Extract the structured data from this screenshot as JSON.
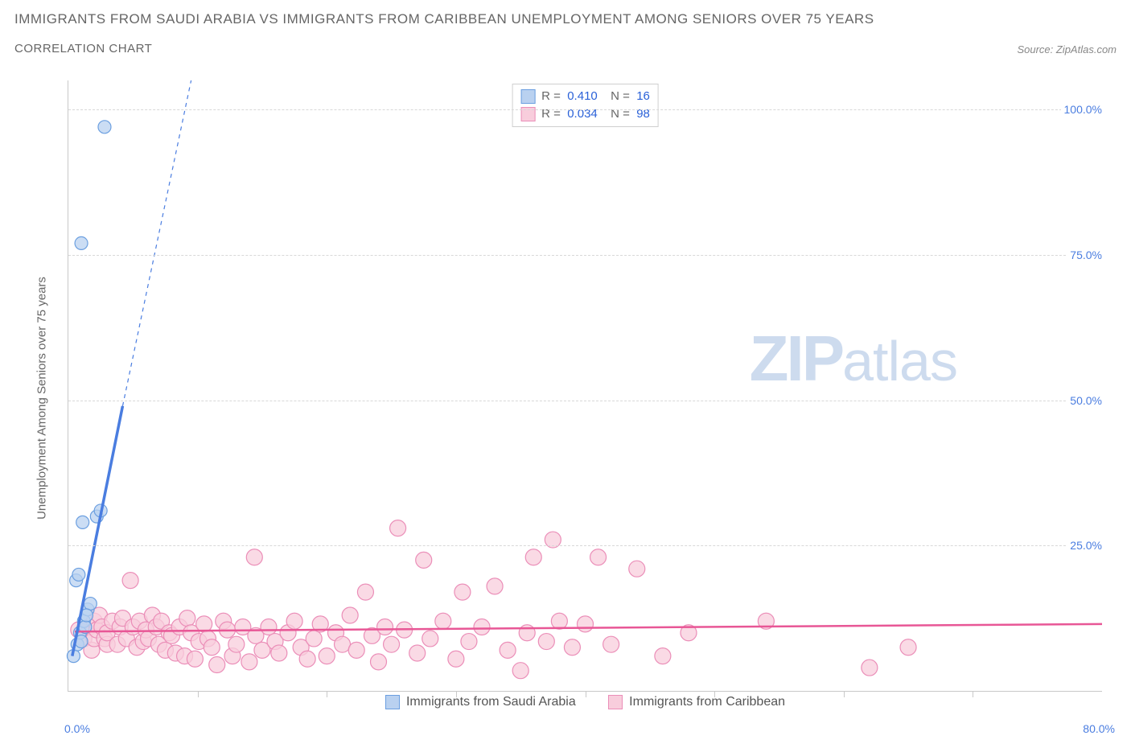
{
  "title": "IMMIGRANTS FROM SAUDI ARABIA VS IMMIGRANTS FROM CARIBBEAN UNEMPLOYMENT AMONG SENIORS OVER 75 YEARS",
  "subtitle": "CORRELATION CHART",
  "source": "Source: ZipAtlas.com",
  "yaxis_title": "Unemployment Among Seniors over 75 years",
  "watermark_bold": "ZIP",
  "watermark_light": "atlas",
  "chart": {
    "type": "scatter",
    "xlim": [
      0,
      80
    ],
    "ylim": [
      0,
      105
    ],
    "x_start_label": "0.0%",
    "x_end_label": "80.0%",
    "x_tick_step": 10,
    "y_ticks": [
      25,
      50,
      75,
      100
    ],
    "y_tick_labels": [
      "25.0%",
      "50.0%",
      "75.0%",
      "100.0%"
    ],
    "grid_color": "#d8d8d8",
    "axis_color": "#c9c9c9",
    "label_color": "#4a7de0",
    "series": [
      {
        "name": "Immigrants from Saudi Arabia",
        "fill": "#b9d1f0",
        "stroke": "#6b9fe0",
        "trend_color": "#4a7de0",
        "marker_r": 8,
        "R": "0.410",
        "N": "16",
        "trend": {
          "x1": 0.3,
          "y1": 6,
          "x2": 4.2,
          "y2": 49,
          "dash_to_x": 9.5,
          "dash_to_y": 105
        },
        "points": [
          [
            0.4,
            6
          ],
          [
            0.7,
            8
          ],
          [
            0.9,
            10
          ],
          [
            1.0,
            8.5
          ],
          [
            1.2,
            12
          ],
          [
            1.3,
            11
          ],
          [
            1.5,
            14
          ],
          [
            1.7,
            15
          ],
          [
            0.6,
            19
          ],
          [
            0.8,
            20
          ],
          [
            2.2,
            30
          ],
          [
            2.5,
            31
          ],
          [
            1.1,
            29
          ],
          [
            1.0,
            77
          ],
          [
            2.8,
            97
          ],
          [
            1.4,
            13
          ]
        ]
      },
      {
        "name": "Immigrants from Caribbean",
        "fill": "#f8cddc",
        "stroke": "#eb8eb8",
        "trend_color": "#e85796",
        "marker_r": 10,
        "R": "0.034",
        "N": "98",
        "trend": {
          "x1": 0.5,
          "y1": 10.2,
          "x2": 80,
          "y2": 11.5
        },
        "points": [
          [
            0.8,
            10.5
          ],
          [
            1.2,
            9
          ],
          [
            1.6,
            11
          ],
          [
            1.8,
            7
          ],
          [
            2.0,
            12
          ],
          [
            2.0,
            9
          ],
          [
            2.2,
            10.5
          ],
          [
            2.4,
            13
          ],
          [
            2.6,
            11
          ],
          [
            2.8,
            9
          ],
          [
            3.0,
            8
          ],
          [
            3.0,
            10
          ],
          [
            3.4,
            12
          ],
          [
            3.8,
            8
          ],
          [
            4.0,
            11
          ],
          [
            4.2,
            12.5
          ],
          [
            4.5,
            9
          ],
          [
            4.8,
            19
          ],
          [
            5.0,
            11
          ],
          [
            5.3,
            7.5
          ],
          [
            5.5,
            12
          ],
          [
            5.8,
            8.5
          ],
          [
            6.0,
            10.5
          ],
          [
            6.2,
            9
          ],
          [
            6.5,
            13
          ],
          [
            6.8,
            11
          ],
          [
            7.0,
            8
          ],
          [
            7.2,
            12
          ],
          [
            7.5,
            7
          ],
          [
            7.8,
            10
          ],
          [
            8.0,
            9.5
          ],
          [
            8.3,
            6.5
          ],
          [
            8.6,
            11
          ],
          [
            9.0,
            6
          ],
          [
            9.2,
            12.5
          ],
          [
            9.5,
            10
          ],
          [
            9.8,
            5.5
          ],
          [
            10.1,
            8.5
          ],
          [
            10.5,
            11.5
          ],
          [
            10.8,
            9
          ],
          [
            11.1,
            7.5
          ],
          [
            11.5,
            4.5
          ],
          [
            12.0,
            12
          ],
          [
            12.3,
            10.5
          ],
          [
            12.7,
            6
          ],
          [
            13.0,
            8
          ],
          [
            13.5,
            11
          ],
          [
            14.0,
            5
          ],
          [
            14.4,
            23
          ],
          [
            14.5,
            9.5
          ],
          [
            15.0,
            7
          ],
          [
            15.5,
            11
          ],
          [
            16.0,
            8.5
          ],
          [
            16.3,
            6.5
          ],
          [
            17.0,
            10
          ],
          [
            17.5,
            12
          ],
          [
            18.0,
            7.5
          ],
          [
            18.5,
            5.5
          ],
          [
            19.0,
            9
          ],
          [
            19.5,
            11.5
          ],
          [
            20.0,
            6
          ],
          [
            20.7,
            10
          ],
          [
            21.2,
            8
          ],
          [
            21.8,
            13
          ],
          [
            22.3,
            7
          ],
          [
            23.0,
            17
          ],
          [
            23.5,
            9.5
          ],
          [
            24.0,
            5
          ],
          [
            24.5,
            11
          ],
          [
            25.0,
            8
          ],
          [
            25.5,
            28
          ],
          [
            26.0,
            10.5
          ],
          [
            27.0,
            6.5
          ],
          [
            27.5,
            22.5
          ],
          [
            28.0,
            9
          ],
          [
            29.0,
            12
          ],
          [
            30.0,
            5.5
          ],
          [
            30.5,
            17
          ],
          [
            31.0,
            8.5
          ],
          [
            32.0,
            11
          ],
          [
            33.0,
            18
          ],
          [
            34.0,
            7
          ],
          [
            35.0,
            3.5
          ],
          [
            35.5,
            10
          ],
          [
            36.0,
            23
          ],
          [
            37.0,
            8.5
          ],
          [
            37.5,
            26
          ],
          [
            38.0,
            12
          ],
          [
            39.0,
            7.5
          ],
          [
            40.0,
            11.5
          ],
          [
            41.0,
            23
          ],
          [
            42.0,
            8
          ],
          [
            44.0,
            21
          ],
          [
            46.0,
            6
          ],
          [
            48.0,
            10
          ],
          [
            54.0,
            12
          ],
          [
            62.0,
            4
          ],
          [
            65.0,
            7.5
          ]
        ]
      }
    ]
  },
  "legend_bottom": [
    {
      "label": "Immigrants from Saudi Arabia",
      "fill": "#b9d1f0",
      "stroke": "#6b9fe0"
    },
    {
      "label": "Immigrants from Caribbean",
      "fill": "#f8cddc",
      "stroke": "#eb8eb8"
    }
  ]
}
